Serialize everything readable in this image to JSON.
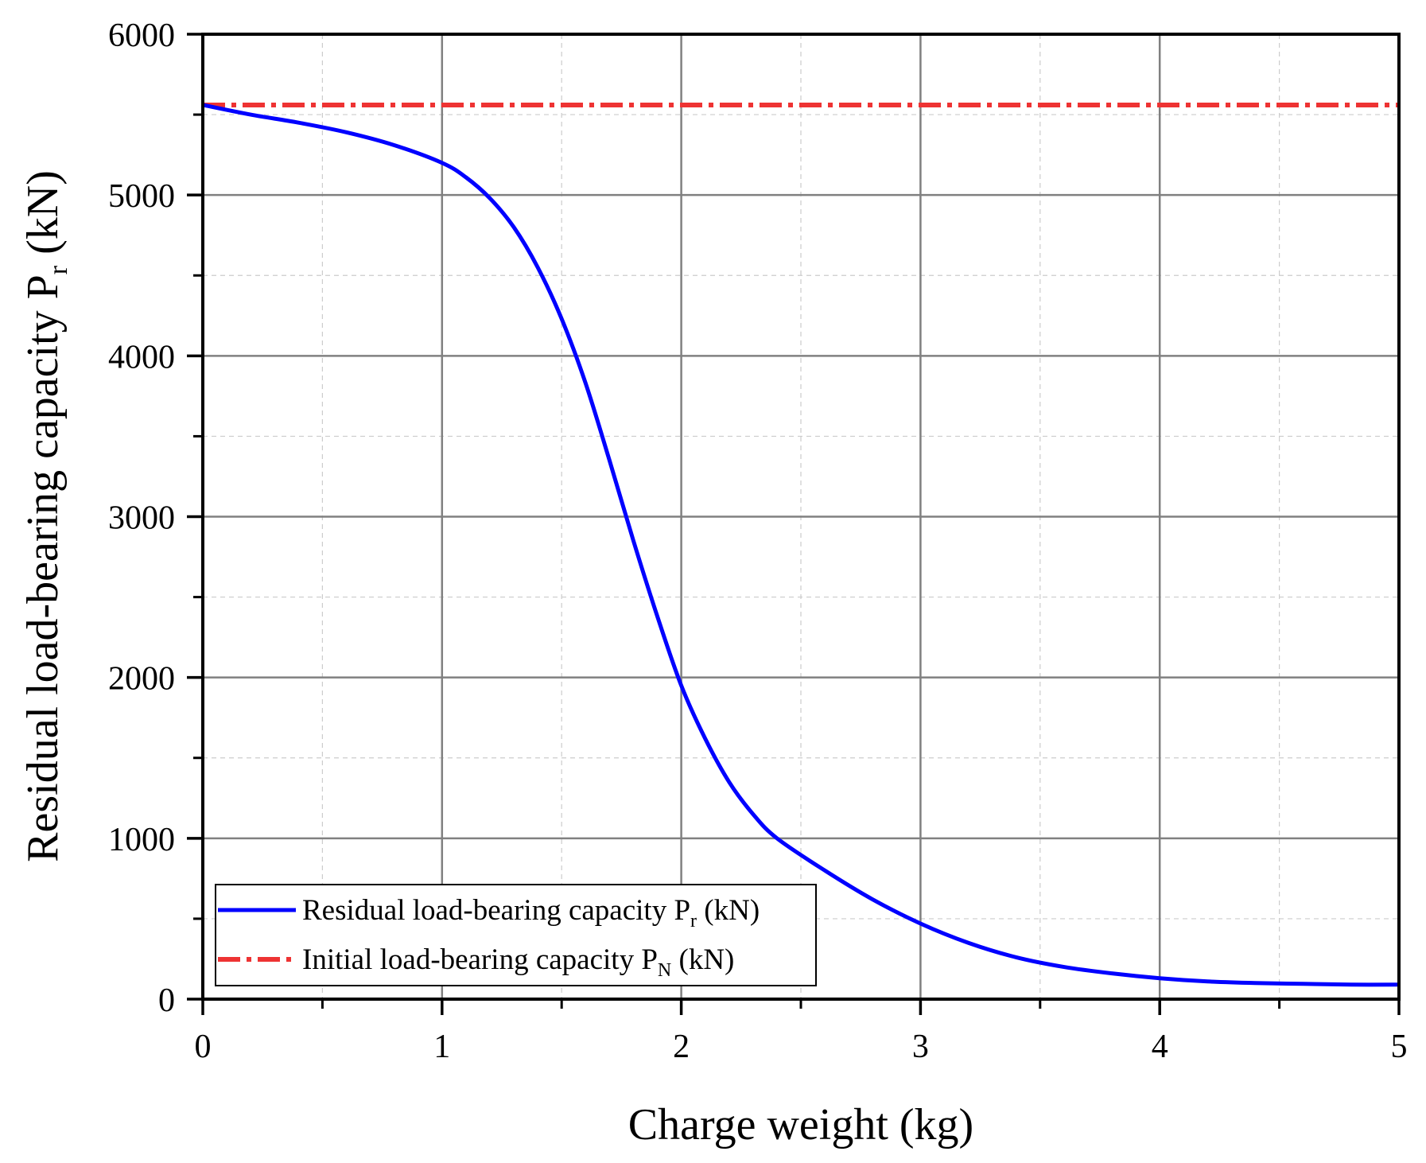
{
  "chart_data": {
    "type": "line",
    "xlabel": "Charge weight (kg)",
    "ylabel": "Residual load-bearing capacity P",
    "ylabel_sub": "r",
    "ylabel_unit": " (kN)",
    "xlim": [
      0,
      5
    ],
    "ylim": [
      0,
      6000
    ],
    "x_ticks": [
      "0",
      "1",
      "2",
      "3",
      "4",
      "5"
    ],
    "y_ticks": [
      "0",
      "1000",
      "2000",
      "3000",
      "4000",
      "5000",
      "6000"
    ],
    "grid": true,
    "legend_position": "bottom-left",
    "series": [
      {
        "name": "Residual load-bearing capacity P",
        "name_sub": "r",
        "name_unit": " (kN)",
        "color": "#0000ff",
        "style": "solid",
        "x": [
          0,
          0.2,
          0.4,
          0.6,
          0.8,
          1.0,
          1.1,
          1.2,
          1.3,
          1.4,
          1.5,
          1.6,
          1.7,
          1.8,
          1.9,
          2.0,
          2.1,
          2.2,
          2.3,
          2.4,
          2.6,
          2.8,
          3.0,
          3.2,
          3.4,
          3.6,
          3.8,
          4.0,
          4.2,
          4.4,
          4.6,
          4.8,
          5.0
        ],
        "y": [
          5560,
          5500,
          5450,
          5390,
          5310,
          5200,
          5110,
          4980,
          4800,
          4550,
          4230,
          3830,
          3350,
          2850,
          2380,
          1950,
          1620,
          1350,
          1150,
          1000,
          800,
          620,
          470,
          350,
          260,
          200,
          160,
          130,
          110,
          100,
          95,
          90,
          90
        ]
      },
      {
        "name": "Initial load-bearing capacity P",
        "name_sub": "N",
        "name_unit": " (kN)",
        "color": "#ee3333",
        "style": "dashdot",
        "x": [
          0,
          5
        ],
        "y": [
          5560,
          5560
        ]
      }
    ]
  }
}
